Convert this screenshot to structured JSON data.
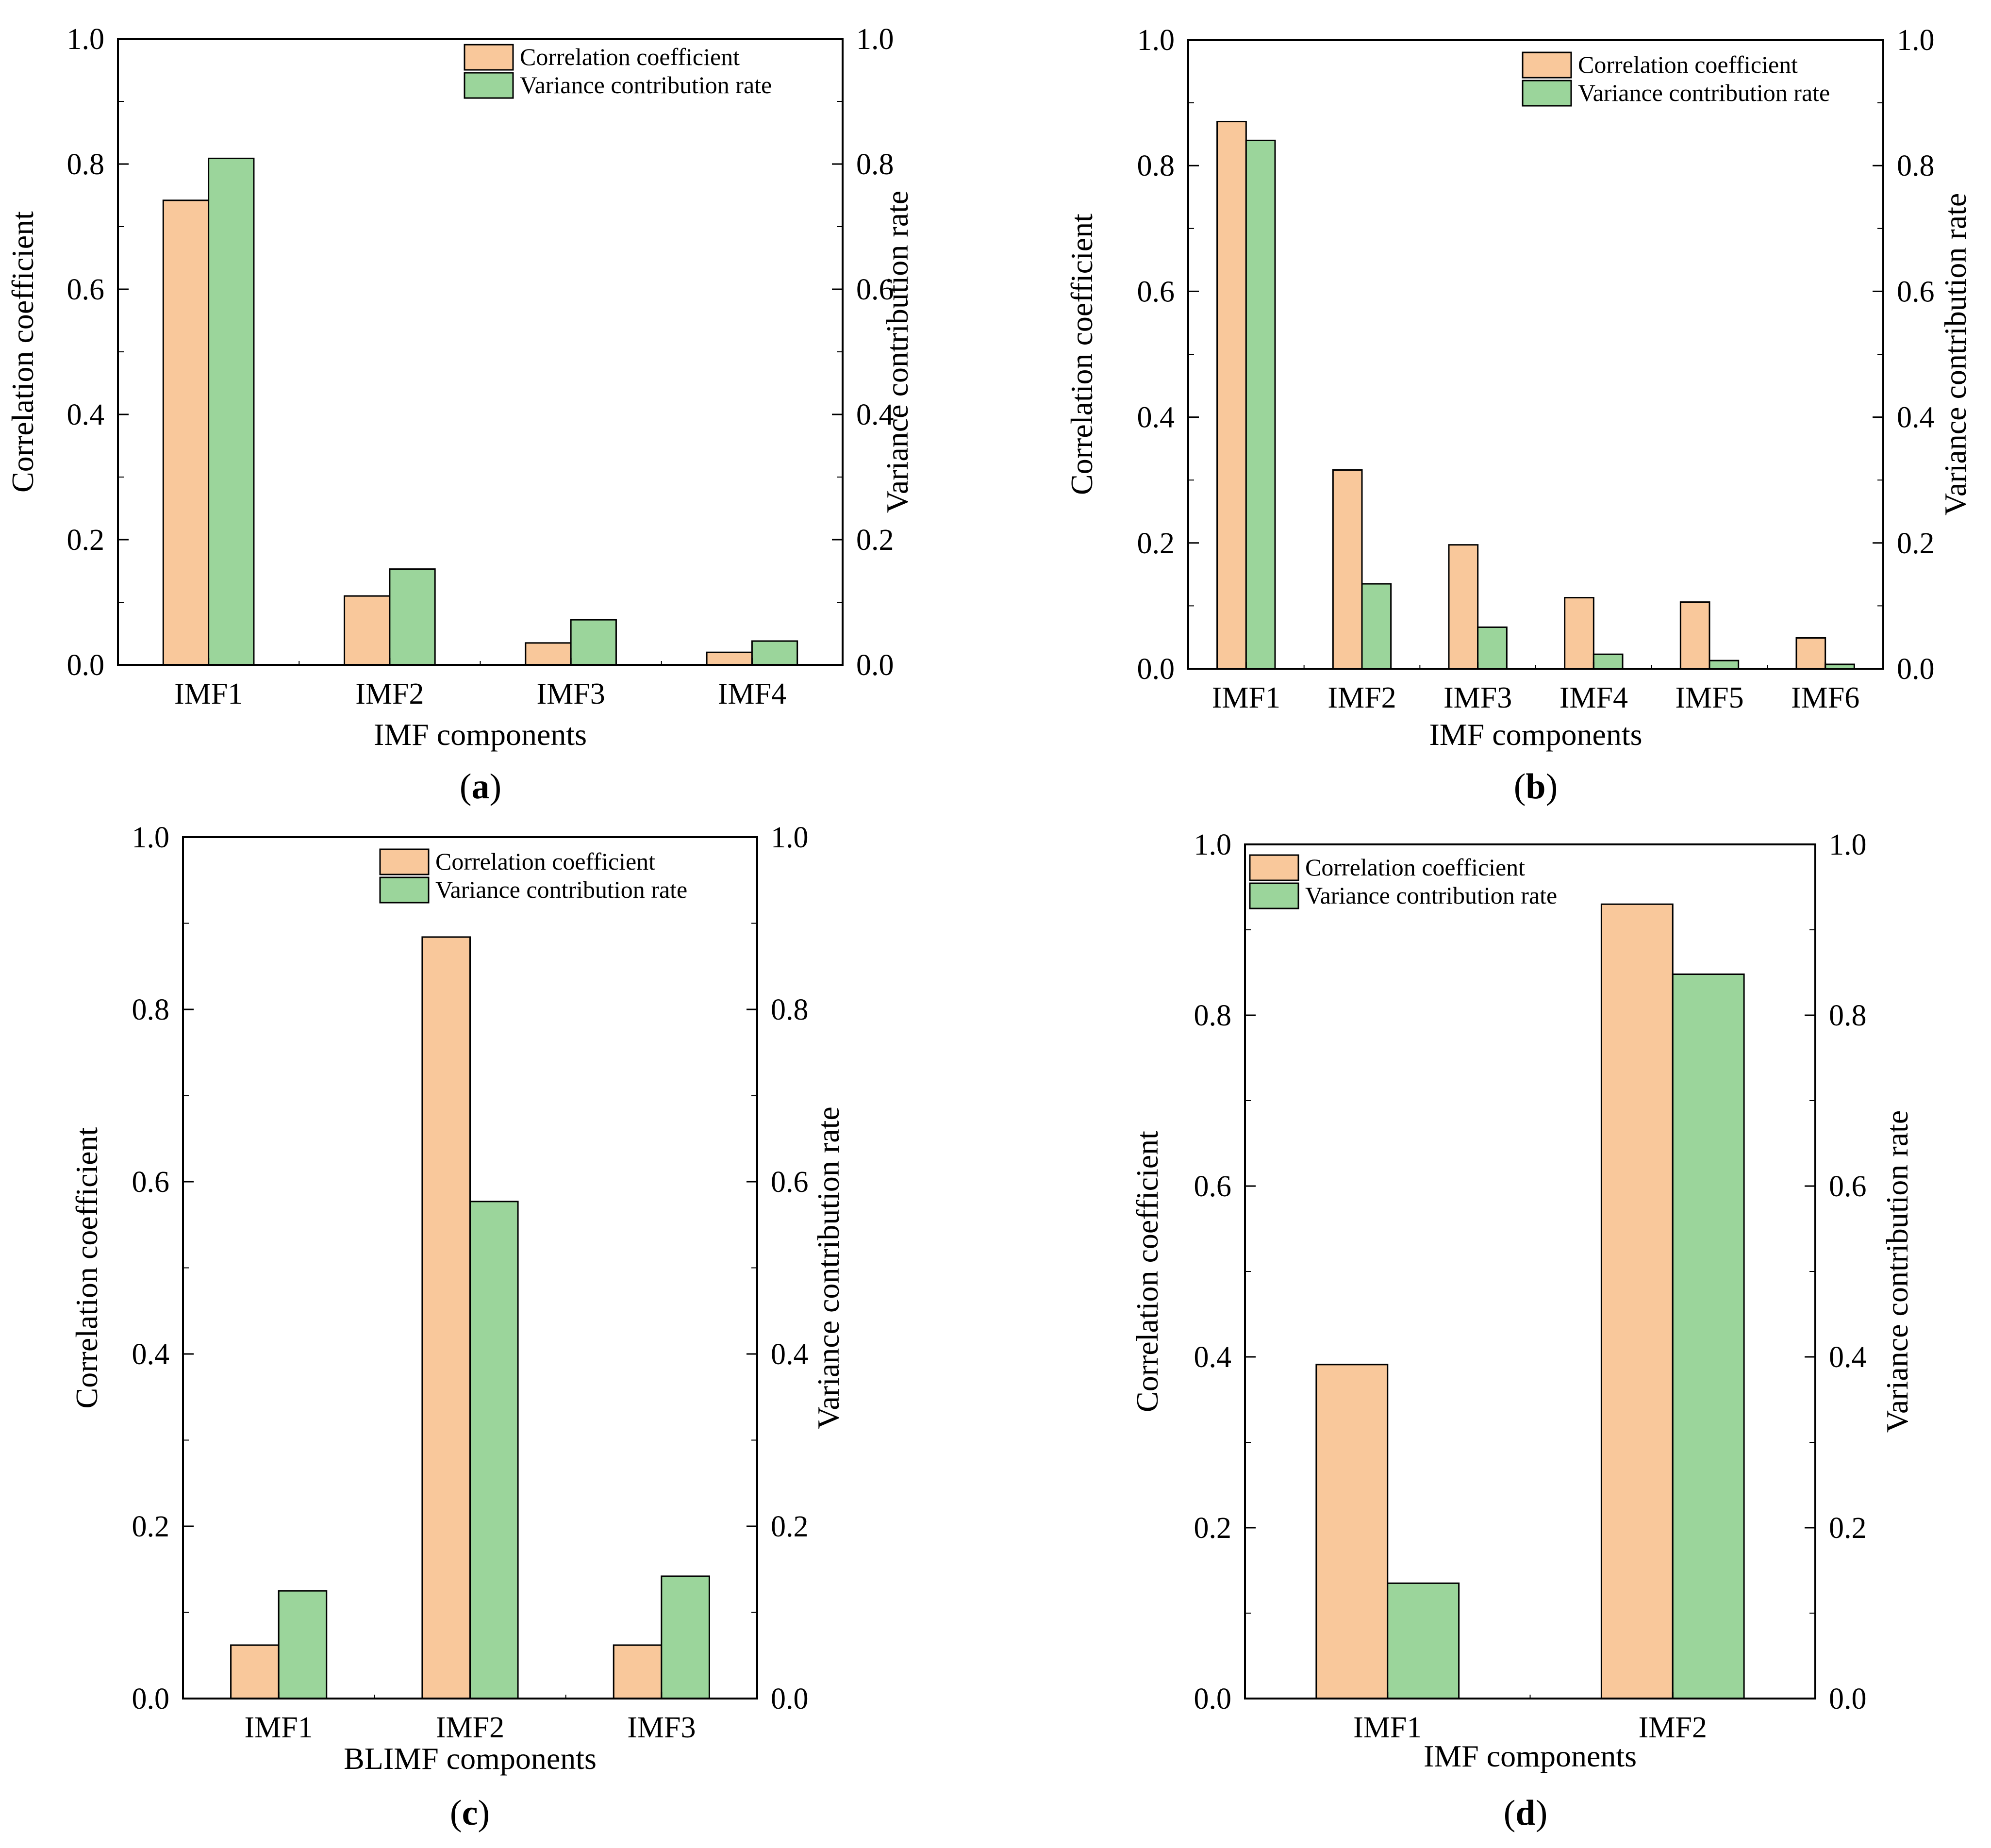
{
  "colors": {
    "corr": "#f9c89b",
    "var": "#9bd59b",
    "stroke": "#000000"
  },
  "legend": {
    "corr": "Correlation coefficient",
    "var": "Variance contribution rate"
  },
  "chart_data": [
    {
      "type": "bar",
      "panel": "a",
      "label": "(a)",
      "title": "",
      "xlabel": "IMF components",
      "ylabel": "Correlation coefficient",
      "y2label": "Variance contribution rate",
      "categories": [
        "IMF1",
        "IMF2",
        "IMF3",
        "IMF4"
      ],
      "series": [
        {
          "name": "Correlation coefficient",
          "values": [
            0.742,
            0.11,
            0.035,
            0.02
          ]
        },
        {
          "name": "Variance contribution rate",
          "values": [
            0.809,
            0.153,
            0.072,
            0.038
          ]
        }
      ],
      "ylim": [
        0,
        1.0
      ],
      "y2lim": [
        0,
        1.0
      ],
      "yticks": [
        "0.0",
        "0.2",
        "0.4",
        "0.6",
        "0.8",
        "1.0"
      ],
      "legend_position": "top-right",
      "grid": false
    },
    {
      "type": "bar",
      "panel": "b",
      "label": "(b)",
      "title": "",
      "xlabel": "IMF components",
      "ylabel": "Correlation coefficient",
      "y2label": "Variance contribution rate",
      "categories": [
        "IMF1",
        "IMF2",
        "IMF3",
        "IMF4",
        "IMF5",
        "IMF6"
      ],
      "series": [
        {
          "name": "Correlation coefficient",
          "values": [
            0.87,
            0.316,
            0.197,
            0.113,
            0.106,
            0.049
          ]
        },
        {
          "name": "Variance contribution rate",
          "values": [
            0.84,
            0.135,
            0.066,
            0.023,
            0.013,
            0.007
          ]
        }
      ],
      "ylim": [
        0,
        1.0
      ],
      "y2lim": [
        0,
        1.0
      ],
      "yticks": [
        "0.0",
        "0.2",
        "0.4",
        "0.6",
        "0.8",
        "1.0"
      ],
      "legend_position": "top-right",
      "grid": false
    },
    {
      "type": "bar",
      "panel": "c",
      "label": "(c)",
      "title": "",
      "xlabel": "BLIMF components",
      "ylabel": "Correlation coefficient",
      "y2label": "Variance contribution rate",
      "categories": [
        "IMF1",
        "IMF2",
        "IMF3"
      ],
      "series": [
        {
          "name": "Correlation coefficient",
          "values": [
            0.062,
            0.884,
            0.062
          ]
        },
        {
          "name": "Variance contribution rate",
          "values": [
            0.125,
            0.577,
            0.142
          ]
        }
      ],
      "ylim": [
        0,
        1.0
      ],
      "y2lim": [
        0,
        1.0
      ],
      "yticks": [
        "0.0",
        "0.2",
        "0.4",
        "0.6",
        "0.8",
        "1.0"
      ],
      "legend_position": "top-right",
      "grid": false
    },
    {
      "type": "bar",
      "panel": "d",
      "label": "(d)",
      "title": "",
      "xlabel": "IMF components",
      "ylabel": "Correlation coefficient",
      "y2label": "Variance contribution rate",
      "categories": [
        "IMF1",
        "IMF2"
      ],
      "series": [
        {
          "name": "Correlation coefficient",
          "values": [
            0.391,
            0.93
          ]
        },
        {
          "name": "Variance contribution rate",
          "values": [
            0.135,
            0.848
          ]
        }
      ],
      "ylim": [
        0,
        1.0
      ],
      "y2lim": [
        0,
        1.0
      ],
      "yticks": [
        "0.0",
        "0.2",
        "0.4",
        "0.6",
        "0.8",
        "1.0"
      ],
      "legend_position": "top-left",
      "grid": false
    }
  ]
}
